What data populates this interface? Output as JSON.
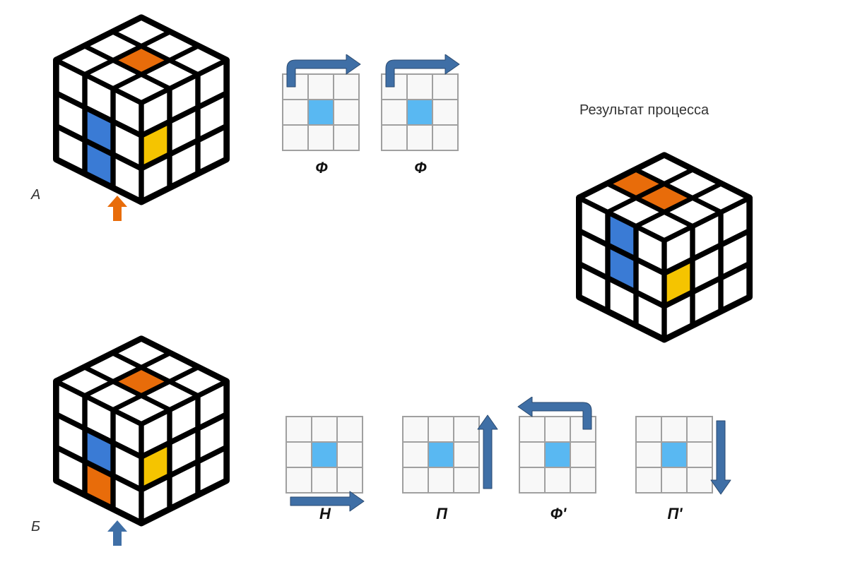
{
  "colors": {
    "white": "#ffffff",
    "orange": "#e86c0a",
    "blue": "#3a7bd5",
    "yellow": "#f5c400",
    "lightBlue": "#59b8f2",
    "cubeEdge": "#000000",
    "gridLine": "#a0a0a0",
    "gridCell": "#f8f8f8",
    "arrowBlue": "#3f6fa6",
    "arrowOrange": "#e86c0a",
    "labelText": "#333333"
  },
  "labels": {
    "A": "А",
    "B": "Б",
    "result": "Результат процесса",
    "F": "Ф",
    "H": "Н",
    "P": "П",
    "Fp": "Ф'",
    "Pp": "П'"
  },
  "cubes": {
    "A": {
      "top": [
        "W",
        "W",
        "W",
        "W",
        "O",
        "W",
        "W",
        "W",
        "W"
      ],
      "left": [
        "W",
        "W",
        "W",
        "W",
        "B",
        "W",
        "W",
        "B",
        "W"
      ],
      "right": [
        "W",
        "W",
        "W",
        "Y",
        "W",
        "W",
        "W",
        "W",
        "W"
      ]
    },
    "B": {
      "top": [
        "W",
        "W",
        "W",
        "W",
        "O",
        "W",
        "W",
        "W",
        "W"
      ],
      "left": [
        "W",
        "W",
        "W",
        "W",
        "B",
        "W",
        "W",
        "O",
        "W"
      ],
      "right": [
        "W",
        "W",
        "W",
        "Y",
        "W",
        "W",
        "W",
        "W",
        "W"
      ]
    },
    "R": {
      "top": [
        "W",
        "W",
        "W",
        "O",
        "O",
        "W",
        "W",
        "W",
        "W"
      ],
      "left": [
        "W",
        "B",
        "W",
        "W",
        "B",
        "W",
        "W",
        "W",
        "W"
      ],
      "right": [
        "W",
        "W",
        "W",
        "Y",
        "W",
        "W",
        "W",
        "W",
        "W"
      ]
    }
  },
  "grids": {
    "topRow": [
      {
        "label": "F",
        "arrow": "topCW"
      },
      {
        "label": "F",
        "arrow": "topCW"
      }
    ],
    "bottomRow": [
      {
        "label": "H",
        "arrow": "bottomRight"
      },
      {
        "label": "P",
        "arrow": "rightUp"
      },
      {
        "label": "Fp",
        "arrow": "topCCW"
      },
      {
        "label": "Pp",
        "arrow": "rightDown"
      }
    ]
  },
  "layout": {
    "cubeSize": 260,
    "gridCell": 36,
    "gridGap": 130
  }
}
